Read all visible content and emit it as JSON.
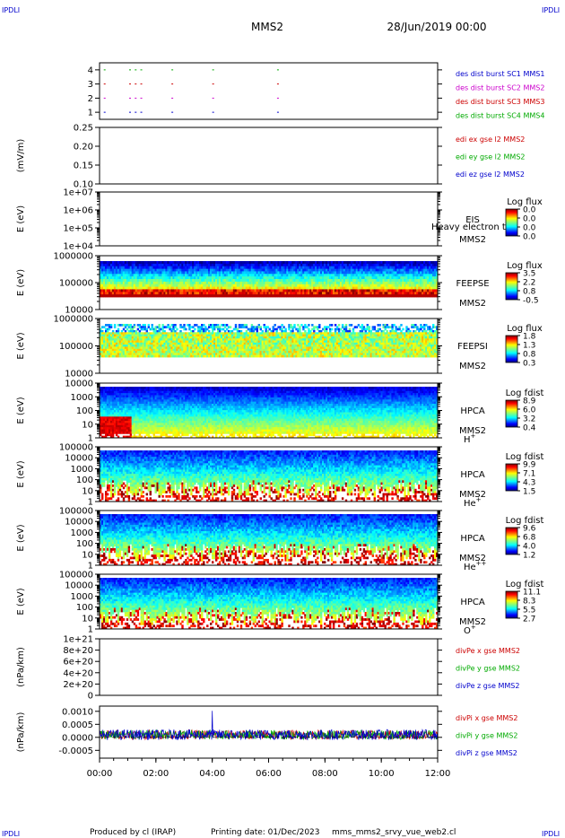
{
  "header": {
    "corner_tl": "IPDLI",
    "corner_tr": "IPDLI",
    "corner_bl": "IPDLI",
    "corner_br": "IPDLI",
    "title": "MMS2",
    "date": "28/Jun/2019 00:00"
  },
  "footer": {
    "produced_by": "Produced by cl (IRAP)",
    "printing_date": "Printing date: 01/Dec/2023",
    "file": "mms_mms2_srvy_vue_web2.cl"
  },
  "chart_data": {
    "type": "stacked-timeseries",
    "x_tick_labels": [
      "00:00",
      "02:00",
      "04:00",
      "06:00",
      "08:00",
      "10:00",
      "12:00"
    ],
    "x_range_hours": [
      0,
      12
    ],
    "panels": [
      {
        "id": "burst",
        "kind": "flags",
        "ylabel": "",
        "ylim": [
          0.5,
          4.5
        ],
        "tick_labels": [
          "4",
          "3",
          "2",
          "1"
        ],
        "tick_values": [
          4,
          3,
          2,
          1
        ],
        "legend": [
          {
            "text": "des dist burst SC1 MMS1",
            "color": "#0000cc"
          },
          {
            "text": "des dist burst SC2 MMS2",
            "color": "#cc00cc"
          },
          {
            "text": "des dist burst SC3 MMS3",
            "color": "#cc0000"
          },
          {
            "text": "des dist burst SC4 MMS4",
            "color": "#00aa00"
          }
        ],
        "flag_hours": [
          0.15,
          1.05,
          1.25,
          1.45,
          2.55,
          4.0,
          6.3
        ]
      },
      {
        "id": "edi",
        "kind": "empty",
        "ylabel": "(mV/m)",
        "ylim": [
          0.1,
          0.25
        ],
        "tick_labels": [
          "0.25",
          "0.20",
          "0.15",
          "0.10"
        ],
        "tick_values": [
          0.25,
          0.2,
          0.15,
          0.1
        ],
        "legend": [
          {
            "text": "edi ex gse l2 MMS2",
            "color": "#cc0000"
          },
          {
            "text": "edi ey gse l2 MMS2",
            "color": "#00aa00"
          },
          {
            "text": "edi ez gse l2 MMS2",
            "color": "#0000cc"
          }
        ]
      },
      {
        "id": "eis",
        "kind": "empty-spectro",
        "ylabel": "E (eV)",
        "scale": "log",
        "tick_labels": [
          "1e+07",
          "1e+06",
          "1e+05",
          "1e+04"
        ],
        "tick_values": [
          10000000.0,
          1000000.0,
          100000.0,
          10000.0
        ],
        "instrument": "EIS",
        "overlay": "Heavy electron to",
        "spacecraft": "MMS2",
        "cbar_title": "Log flux",
        "cbar_ticks": [
          "0.0",
          "0.0",
          "0.0",
          "0.0"
        ]
      },
      {
        "id": "feepse",
        "kind": "spectro",
        "ylabel": "E (eV)",
        "scale": "log",
        "tick_labels": [
          "1000000",
          "100000",
          "10000"
        ],
        "tick_values": [
          1000000.0,
          100000.0,
          10000.0
        ],
        "instrument": "FEEPSE",
        "spacecraft": "MMS2",
        "cbar_title": "Log flux",
        "cbar_ticks": [
          "3.5",
          "2.2",
          "0.8",
          "-0.5"
        ]
      },
      {
        "id": "feepsi",
        "kind": "spectro",
        "ylabel": "E (eV)",
        "scale": "log",
        "tick_labels": [
          "1000000",
          "100000",
          "10000"
        ],
        "tick_values": [
          1000000.0,
          100000.0,
          10000.0
        ],
        "instrument": "FEEPSI",
        "spacecraft": "MMS2",
        "cbar_title": "Log flux",
        "cbar_ticks": [
          "1.8",
          "1.3",
          "0.8",
          "0.3"
        ]
      },
      {
        "id": "hpca_h",
        "kind": "spectro",
        "ylabel": "E (eV)",
        "scale": "log",
        "tick_labels": [
          "10000",
          "1000",
          "100",
          "10",
          "1"
        ],
        "tick_values": [
          10000,
          1000,
          100,
          10,
          1
        ],
        "instrument": "HPCA",
        "spacecraft": "MMS2",
        "species": "H",
        "species_sup": "+",
        "cbar_title": "Log fdist",
        "cbar_ticks": [
          "8.9",
          "6.0",
          "3.2",
          "0.4"
        ]
      },
      {
        "id": "hpca_he1",
        "kind": "spectro",
        "ylabel": "E (eV)",
        "scale": "log",
        "tick_labels": [
          "100000",
          "10000",
          "1000",
          "100",
          "10",
          "1"
        ],
        "tick_values": [
          100000,
          10000,
          1000,
          100,
          10,
          1
        ],
        "instrument": "HPCA",
        "spacecraft": "MMS2",
        "species": "He",
        "species_sup": "+",
        "cbar_title": "Log fdist",
        "cbar_ticks": [
          "9.9",
          "7.1",
          "4.3",
          "1.5"
        ]
      },
      {
        "id": "hpca_he2",
        "kind": "spectro",
        "ylabel": "E (eV)",
        "scale": "log",
        "tick_labels": [
          "100000",
          "10000",
          "1000",
          "100",
          "10",
          "1"
        ],
        "tick_values": [
          100000,
          10000,
          1000,
          100,
          10,
          1
        ],
        "instrument": "HPCA",
        "spacecraft": "MMS2",
        "species": "He",
        "species_sup": "++",
        "cbar_title": "Log fdist",
        "cbar_ticks": [
          "9.6",
          "6.8",
          "4.0",
          "1.2"
        ]
      },
      {
        "id": "hpca_o",
        "kind": "spectro",
        "ylabel": "E (eV)",
        "scale": "log",
        "tick_labels": [
          "100000",
          "10000",
          "1000",
          "100",
          "10",
          "1"
        ],
        "tick_values": [
          100000,
          10000,
          1000,
          100,
          10,
          1
        ],
        "instrument": "HPCA",
        "spacecraft": "MMS2",
        "species": "O",
        "species_sup": "+",
        "cbar_title": "Log fdist",
        "cbar_ticks": [
          "11.1",
          "8.3",
          "5.5",
          "2.7"
        ]
      },
      {
        "id": "divpe",
        "kind": "empty",
        "ylabel": "(nPa/km)",
        "ylim": [
          0,
          1e+21
        ],
        "tick_labels": [
          "1e+21",
          "8e+20",
          "6e+20",
          "4e+20",
          "2e+20",
          "0"
        ],
        "tick_values": [
          1e+21,
          8e+20,
          6e+20,
          4e+20,
          2e+20,
          0
        ],
        "zero_line": true,
        "legend": [
          {
            "text": "divPe x gse MMS2",
            "color": "#cc0000"
          },
          {
            "text": "divPe y gse MMS2",
            "color": "#00aa00"
          },
          {
            "text": "divPe z gse MMS2",
            "color": "#0000cc"
          }
        ]
      },
      {
        "id": "divpi",
        "kind": "timeseries",
        "ylabel": "(nPa/km)",
        "ylim": [
          -0.0008,
          0.0012
        ],
        "tick_labels": [
          "0.0010",
          "0.0005",
          "0.0000",
          "-0.0005"
        ],
        "tick_values": [
          0.001,
          0.0005,
          0.0,
          -0.0005
        ],
        "zero_line": true,
        "legend": [
          {
            "text": "divPi x gse MMS2",
            "color": "#cc0000"
          },
          {
            "text": "divPi y gse MMS2",
            "color": "#00aa00"
          },
          {
            "text": "divPi z gse MMS2",
            "color": "#0000cc"
          }
        ],
        "series": [
          {
            "name": "divPi x gse MMS2",
            "color": "#cc0000",
            "baseline": 0.0001,
            "noise": 0.00018
          },
          {
            "name": "divPi y gse MMS2",
            "color": "#00aa00",
            "baseline": 0.0001,
            "noise": 0.00018
          },
          {
            "name": "divPi z gse MMS2",
            "color": "#0000cc",
            "baseline": 0.0001,
            "noise": 0.0002
          }
        ]
      }
    ]
  }
}
